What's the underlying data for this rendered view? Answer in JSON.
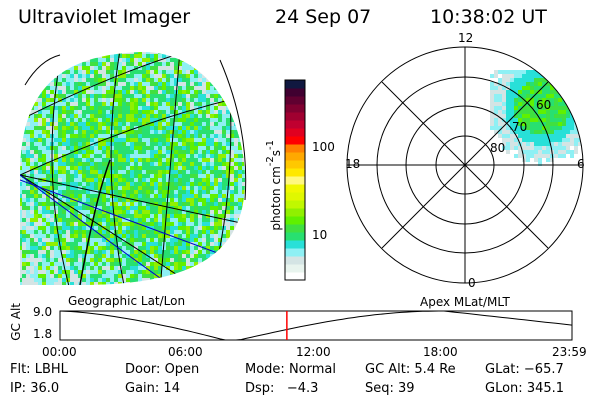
{
  "header": {
    "instrument": "Ultraviolet Imager",
    "date": "24 Sep 07",
    "time": "10:38:02 UT"
  },
  "colorbar": {
    "label": "photon cm",
    "label_exp1": "-2",
    "label_mid": "s",
    "label_exp2": "-1",
    "ticks": [
      "100",
      "10"
    ],
    "colors": [
      "#ffffff",
      "#e8f4ee",
      "#d4e4e4",
      "#8ef0f4",
      "#28e0d8",
      "#28e070",
      "#40e040",
      "#60f000",
      "#90f000",
      "#c0f800",
      "#e0f800",
      "#f0f800",
      "#fff880",
      "#ffe800",
      "#ffc800",
      "#ffa800",
      "#ff8000",
      "#ff0000",
      "#e00020",
      "#c00030",
      "#a00030",
      "#800030",
      "#600030",
      "#400030",
      "#101840"
    ]
  },
  "left_map": {
    "label": "Geographic Lat/Lon"
  },
  "polar_map": {
    "label": "Apex MLat/MLT",
    "mlt_labels": [
      "12",
      "18",
      "6",
      "0"
    ],
    "lat_labels": [
      "60",
      "70",
      "80"
    ]
  },
  "altitude_plot": {
    "ylabel": "GC Alt",
    "yticks": [
      "9.0",
      "1.8"
    ],
    "xticks": [
      "00:00",
      "06:00",
      "12:00",
      "18:00",
      "23:59"
    ],
    "current_time_hours": 10.634,
    "marker_color": "#ff0000"
  },
  "info": [
    [
      {
        "k": "Flt:",
        "v": "LBHL"
      },
      {
        "k": "Door:",
        "v": "Open"
      },
      {
        "k": "Mode:",
        "v": "Normal"
      },
      {
        "k": "GC Alt:",
        "v": "5.4 Re"
      },
      {
        "k": "GLat:",
        "v": "−65.7"
      }
    ],
    [
      {
        "k": "IP:",
        "v": "36.0"
      },
      {
        "k": "Gain:",
        "v": "14"
      },
      {
        "k": "Dsp:",
        "v": "  −4.3"
      },
      {
        "k": "Seq:",
        "v": "39"
      },
      {
        "k": "GLon:",
        "v": "345.1"
      }
    ]
  ]
}
